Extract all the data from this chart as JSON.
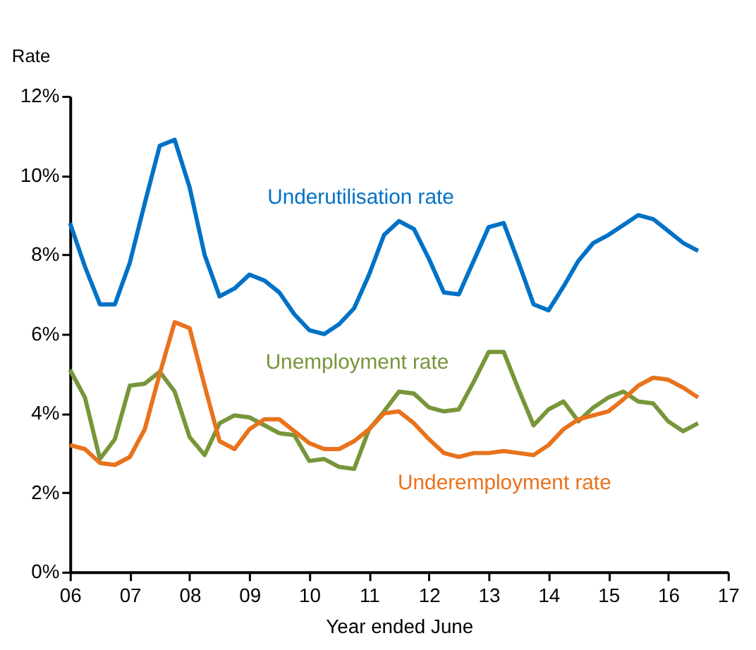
{
  "chart_data": {
    "type": "line",
    "xlabel": "Year ended June",
    "ylabel": "Rate",
    "x": [
      2006,
      2006.25,
      2006.5,
      2006.75,
      2007,
      2007.25,
      2007.5,
      2007.75,
      2008,
      2008.25,
      2008.5,
      2008.75,
      2009,
      2009.25,
      2009.5,
      2009.75,
      2010,
      2010.25,
      2010.5,
      2010.75,
      2011,
      2011.25,
      2011.5,
      2011.75,
      2012,
      2012.25,
      2012.5,
      2012.75,
      2013,
      2013.25,
      2013.5,
      2013.75,
      2014,
      2014.25,
      2014.5,
      2014.75,
      2015,
      2015.25,
      2015.5,
      2015.75,
      2016,
      2016.25,
      2016.5
    ],
    "series": [
      {
        "name": "Underutilisation rate",
        "color": "#0072c6",
        "values": [
          8.8,
          7.7,
          6.75,
          6.75,
          7.8,
          9.3,
          10.75,
          10.9,
          9.7,
          8.0,
          6.95,
          7.15,
          7.5,
          7.35,
          7.05,
          6.5,
          6.1,
          6.0,
          6.25,
          6.65,
          7.5,
          8.5,
          8.85,
          8.65,
          7.9,
          7.05,
          7.0,
          7.85,
          8.7,
          8.8,
          7.8,
          6.75,
          6.6,
          7.2,
          7.85,
          8.3,
          8.5,
          8.75,
          9.0,
          8.9,
          8.6,
          8.3,
          8.1
        ]
      },
      {
        "name": "Unemployment rate",
        "color": "#77963a",
        "values": [
          5.1,
          4.4,
          2.85,
          3.35,
          4.7,
          4.75,
          5.05,
          4.55,
          3.4,
          2.95,
          3.75,
          3.95,
          3.9,
          3.7,
          3.5,
          3.45,
          2.8,
          2.85,
          2.65,
          2.6,
          3.6,
          4.05,
          4.55,
          4.5,
          4.15,
          4.05,
          4.1,
          4.8,
          5.55,
          5.55,
          4.6,
          3.7,
          4.1,
          4.3,
          3.8,
          4.15,
          4.4,
          4.55,
          4.3,
          4.25,
          3.8,
          3.55,
          3.75
        ]
      },
      {
        "name": "Underemployment rate",
        "color": "#e8731c",
        "values": [
          3.2,
          3.1,
          2.75,
          2.7,
          2.9,
          3.6,
          5.0,
          6.3,
          6.15,
          4.7,
          3.3,
          3.1,
          3.6,
          3.85,
          3.85,
          3.55,
          3.25,
          3.1,
          3.1,
          3.3,
          3.6,
          4.0,
          4.05,
          3.75,
          3.35,
          3.0,
          2.9,
          3.0,
          3.0,
          3.05,
          3.0,
          2.95,
          3.2,
          3.6,
          3.85,
          3.95,
          4.05,
          4.35,
          4.7,
          4.9,
          4.85,
          4.65,
          4.4
        ]
      }
    ],
    "xlim": [
      2006,
      2017
    ],
    "xticks": [
      {
        "value": 2006,
        "label": "06"
      },
      {
        "value": 2007,
        "label": "07"
      },
      {
        "value": 2008,
        "label": "08"
      },
      {
        "value": 2009,
        "label": "09"
      },
      {
        "value": 2010,
        "label": "10"
      },
      {
        "value": 2011,
        "label": "11"
      },
      {
        "value": 2012,
        "label": "12"
      },
      {
        "value": 2013,
        "label": "13"
      },
      {
        "value": 2014,
        "label": "14"
      },
      {
        "value": 2015,
        "label": "15"
      },
      {
        "value": 2016,
        "label": "16"
      },
      {
        "value": 2017,
        "label": "17"
      }
    ],
    "ylim": [
      0,
      12
    ],
    "yticks": [
      {
        "value": 0,
        "label": "0%"
      },
      {
        "value": 2,
        "label": "2%"
      },
      {
        "value": 4,
        "label": "4%"
      },
      {
        "value": 6,
        "label": "6%"
      },
      {
        "value": 8,
        "label": "8%"
      },
      {
        "value": 10,
        "label": "10%"
      },
      {
        "value": 12,
        "label": "12%"
      }
    ],
    "grid": false,
    "marker": "none",
    "line_style": "solid"
  }
}
